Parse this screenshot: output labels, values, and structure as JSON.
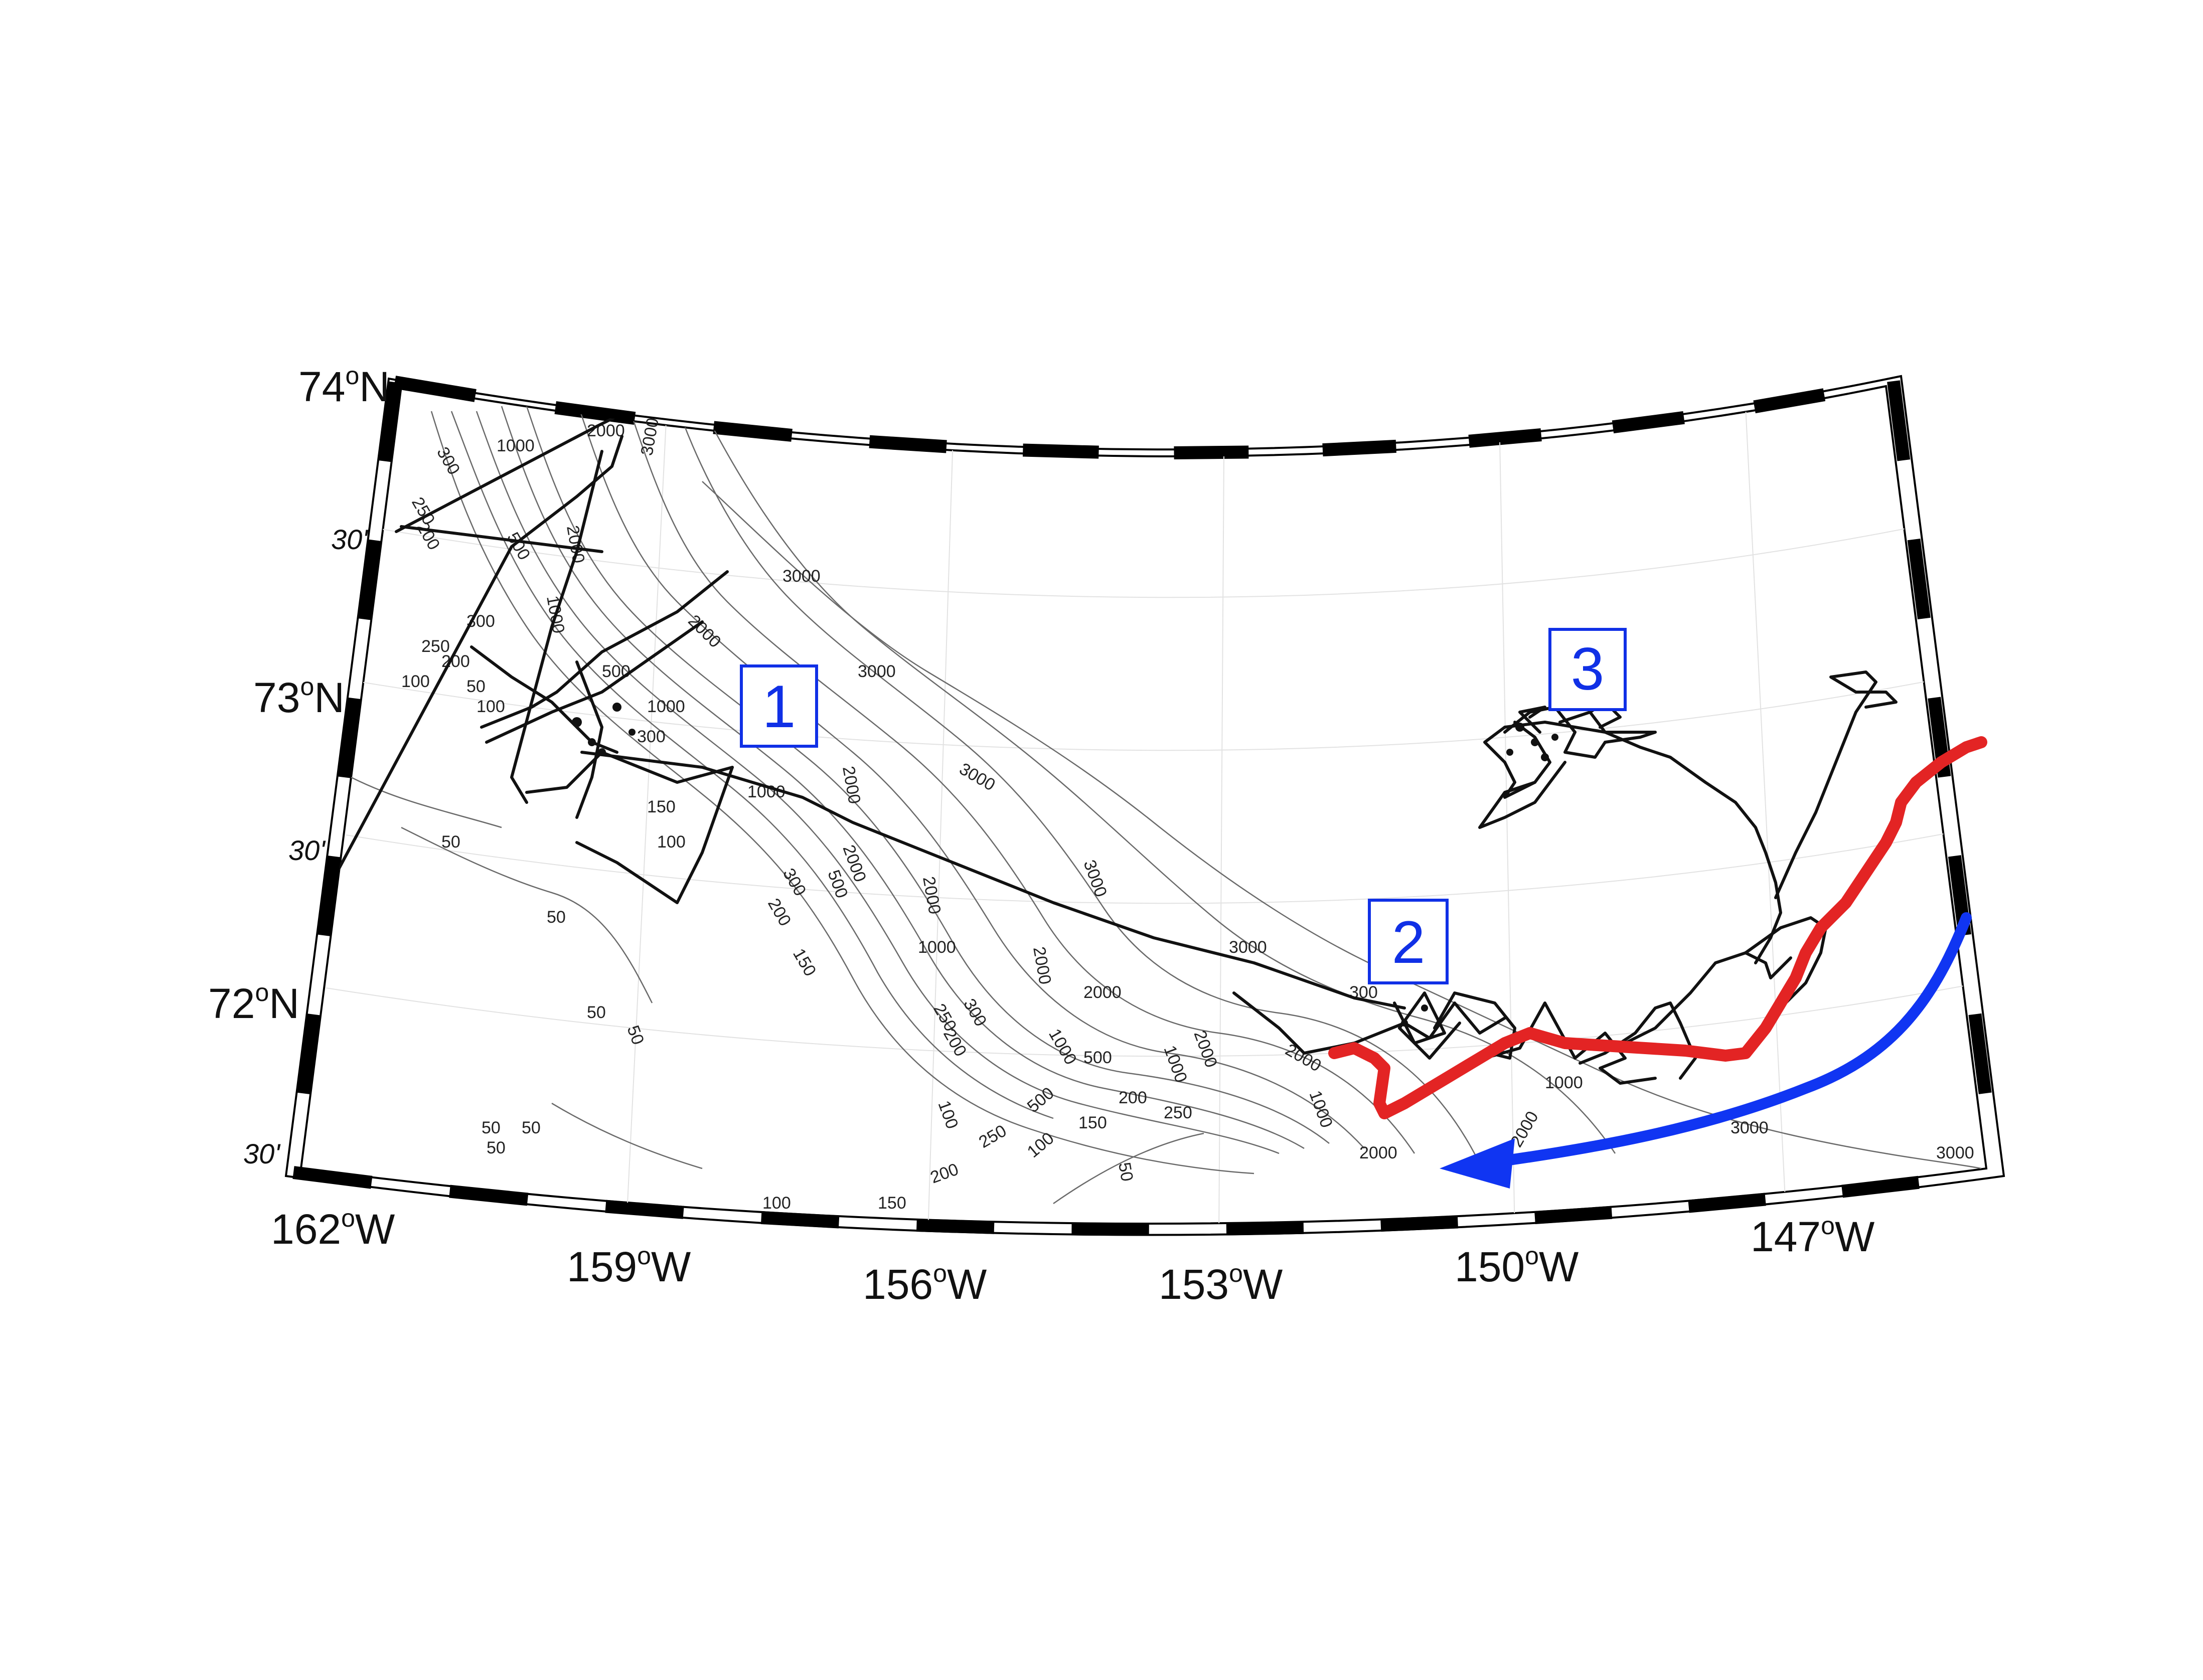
{
  "map": {
    "latitude_labels": [
      "74",
      "73",
      "72"
    ],
    "lat_suffix": "N",
    "minute_labels": [
      "30'",
      "30'",
      "30'"
    ],
    "longitude_labels": [
      "162",
      "159",
      "156",
      "153",
      "150",
      "147"
    ],
    "lon_suffix": "W",
    "degree_symbol": "o",
    "region_labels": [
      "1",
      "2",
      "3"
    ],
    "contour_levels": [
      "50",
      "100",
      "150",
      "200",
      "250",
      "300",
      "500",
      "1000",
      "2000",
      "3000"
    ],
    "colors": {
      "track": "#111111",
      "highlight_track": "#e32424",
      "flow_arrow": "#1035f2",
      "label_box": "#1030e6",
      "contour": "#6a6a6a",
      "frame": "#000000"
    }
  }
}
